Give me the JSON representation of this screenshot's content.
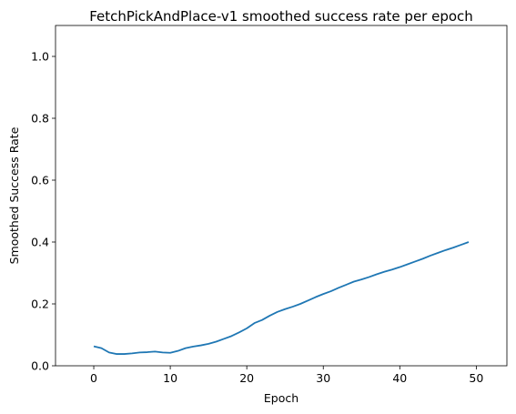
{
  "chart_data": {
    "type": "line",
    "title": "FetchPickAndPlace-v1 smoothed success rate per epoch",
    "xlabel": "Epoch",
    "ylabel": "Smoothed Success Rate",
    "xlim": [
      -5,
      54
    ],
    "ylim": [
      0.0,
      1.1
    ],
    "xticks": [
      0,
      10,
      20,
      30,
      40,
      50
    ],
    "yticks": [
      0.0,
      0.2,
      0.4,
      0.6,
      0.8,
      1.0
    ],
    "xtick_labels": [
      "0",
      "10",
      "20",
      "30",
      "40",
      "50"
    ],
    "ytick_labels": [
      "0.0",
      "0.2",
      "0.4",
      "0.6",
      "0.8",
      "1.0"
    ],
    "grid": false,
    "line_color": "#1f77b4",
    "series": [
      {
        "x": [
          0,
          1,
          2,
          3,
          4,
          5,
          6,
          7,
          8,
          9,
          10,
          11,
          12,
          13,
          14,
          15,
          16,
          17,
          18,
          19,
          20,
          21,
          22,
          23,
          24,
          25,
          26,
          27,
          28,
          29,
          30,
          31,
          32,
          33,
          34,
          35,
          36,
          37,
          38,
          39,
          40,
          41,
          42,
          43,
          44,
          45,
          46,
          47,
          48,
          49
        ],
        "y": [
          0.063,
          0.057,
          0.043,
          0.038,
          0.038,
          0.04,
          0.043,
          0.044,
          0.046,
          0.043,
          0.042,
          0.048,
          0.057,
          0.062,
          0.066,
          0.071,
          0.078,
          0.087,
          0.096,
          0.108,
          0.121,
          0.138,
          0.148,
          0.162,
          0.174,
          0.183,
          0.191,
          0.2,
          0.211,
          0.222,
          0.232,
          0.241,
          0.252,
          0.262,
          0.272,
          0.279,
          0.287,
          0.296,
          0.304,
          0.311,
          0.319,
          0.328,
          0.337,
          0.346,
          0.356,
          0.365,
          0.374,
          0.382,
          0.391,
          0.4
        ]
      }
    ]
  }
}
